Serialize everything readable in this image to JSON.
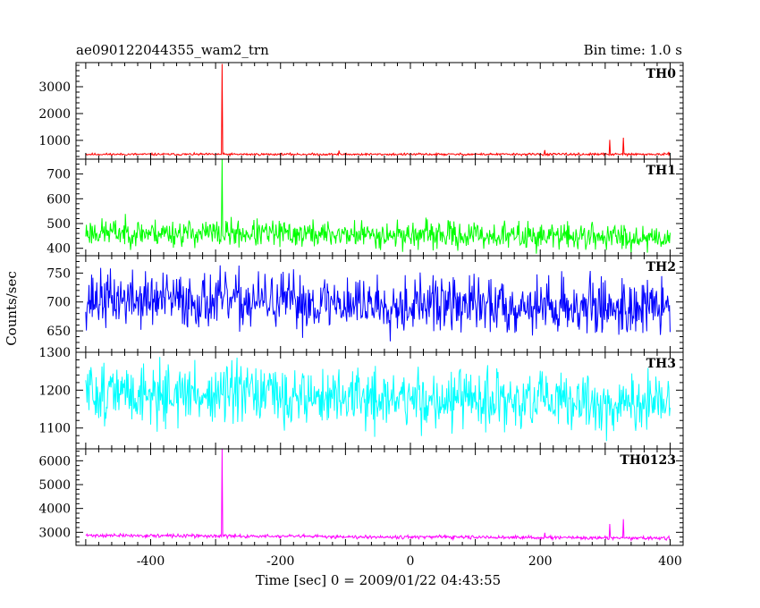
{
  "chart_data": {
    "type": "line",
    "title": "ae090122044355_wam2_trn",
    "bin_time": "Bin time: 1.0 s",
    "xlabel": "Time [sec] 0 = 2009/01/22 04:43:55",
    "ylabel": "Counts/sec",
    "xlim": [
      -515,
      420
    ],
    "x_ticks": [
      -400,
      -200,
      0,
      200,
      400
    ],
    "x_range": [
      -500,
      400
    ],
    "panels": [
      {
        "name": "TH0",
        "color": "#ff0000",
        "ylim": [
          300,
          3900
        ],
        "y_ticks": [
          1000,
          2000,
          3000
        ],
        "base": 480,
        "amp": 35,
        "seed": 11,
        "spikes": [
          [
            -290,
            3850
          ],
          [
            -110,
            620
          ],
          [
            207,
            640
          ],
          [
            307,
            1020
          ],
          [
            328,
            1100
          ]
        ]
      },
      {
        "name": "TH1",
        "color": "#00ff00",
        "ylim": [
          370,
          760
        ],
        "y_ticks": [
          400,
          500,
          600,
          700
        ],
        "base": 465,
        "amp": 45,
        "end_base": 445,
        "seed": 23,
        "spikes": [
          [
            -290,
            760
          ]
        ]
      },
      {
        "name": "TH2",
        "color": "#0000ff",
        "ylim": [
          613,
          780
        ],
        "y_ticks": [
          650,
          700,
          750
        ],
        "base": 705,
        "amp": 40,
        "end_base": 690,
        "seed": 37,
        "spikes": []
      },
      {
        "name": "TH3",
        "color": "#00ffff",
        "ylim": [
          1045,
          1300
        ],
        "y_ticks": [
          1100,
          1200,
          1300
        ],
        "base": 1195,
        "amp": 65,
        "end_base": 1160,
        "seed": 51,
        "spikes": []
      },
      {
        "name": "TH0123",
        "color": "#ff00ff",
        "ylim": [
          2450,
          6500
        ],
        "y_ticks": [
          3000,
          4000,
          5000,
          6000
        ],
        "base": 2870,
        "amp": 60,
        "end_base": 2750,
        "seed": 71,
        "spikes": [
          [
            -290,
            6500
          ],
          [
            307,
            3350
          ],
          [
            328,
            3550
          ],
          [
            207,
            2980
          ]
        ]
      }
    ]
  }
}
